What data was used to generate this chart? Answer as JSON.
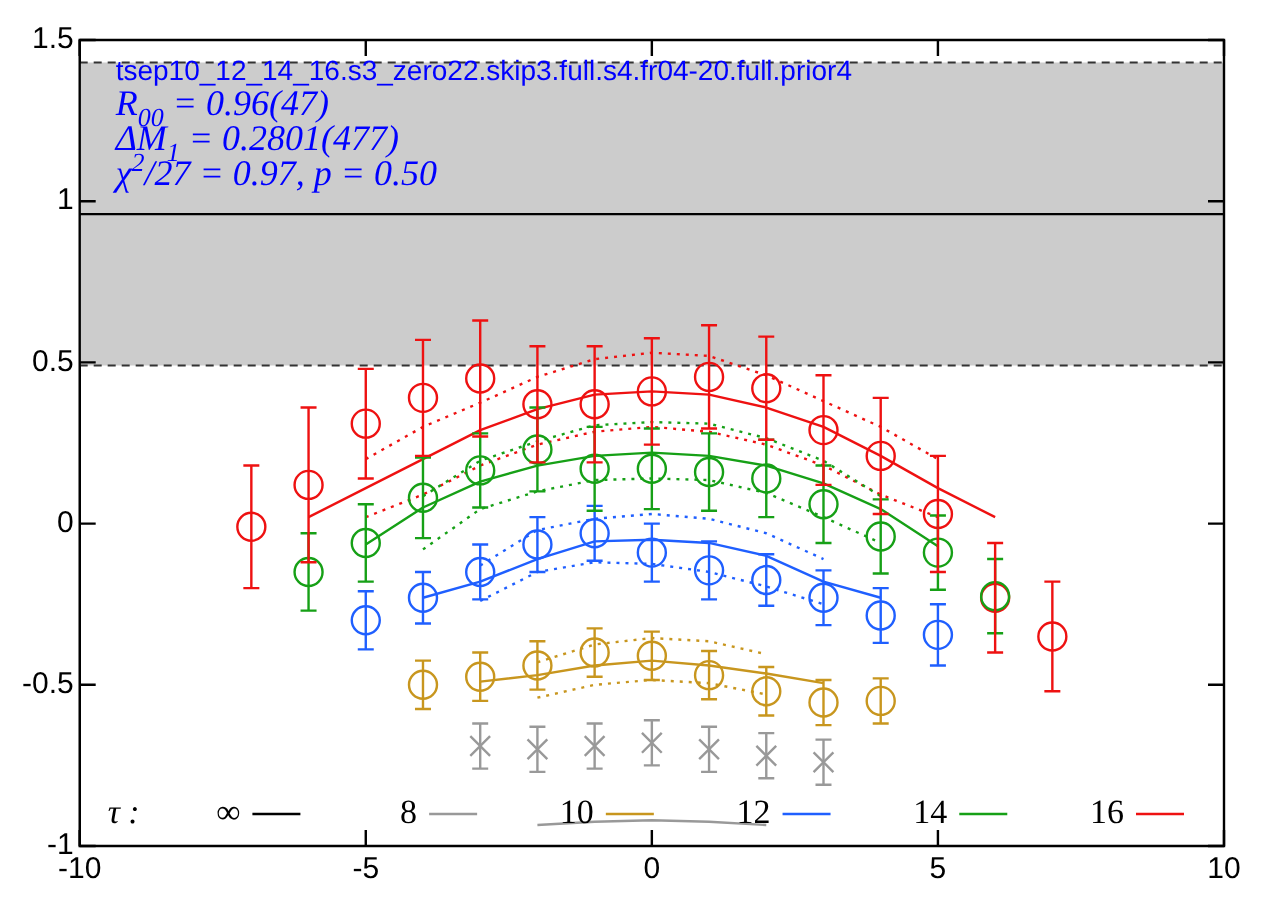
{
  "chart_data": {
    "type": "scatter",
    "annotations": [
      "tsep10_12_14_16.s3_zero22.skip3.full.s4.fr04-20.full.prior4",
      "R$_{00}$ = 0.96(47)",
      "ΔM$_{1}$ = 0.2801(477)",
      "χ$^{2}$/27 = 0.97, p = 0.50"
    ],
    "legend_title": "τ :",
    "legend": "bottom",
    "xlim": [
      -10,
      10
    ],
    "xticks": [
      -10,
      -5,
      0,
      5,
      10
    ],
    "ylim": [
      -1,
      1.5
    ],
    "yticks": [
      -1,
      -0.5,
      0,
      0.5,
      1,
      1.5
    ],
    "bands": [
      {
        "axis": "y",
        "from": 0.49,
        "to": 1.43,
        "color": "#cccccc"
      }
    ],
    "series": [
      {
        "name": "∞",
        "type": "line",
        "color": "#000000",
        "x": [
          -10,
          10
        ],
        "values": [
          0.96,
          0.96
        ]
      },
      {
        "name": "8",
        "type": "line",
        "color": "#999999",
        "x": [
          -2,
          -1,
          0,
          1,
          2
        ],
        "values": [
          -0.935,
          -0.925,
          -0.92,
          -0.925,
          -0.935
        ]
      },
      {
        "type": "scatter",
        "marker": "cross",
        "color": "#999999",
        "x": [
          -3,
          -2,
          -1,
          0,
          1,
          2,
          3
        ],
        "values": [
          -0.69,
          -0.7,
          -0.69,
          -0.68,
          -0.7,
          -0.72,
          -0.74
        ],
        "errors": [
          0.07,
          0.07,
          0.07,
          0.07,
          0.07,
          0.07,
          0.07
        ]
      },
      {
        "name": "10",
        "type": "line",
        "color": "#c8961e",
        "x": [
          -3,
          -2,
          -1,
          0,
          1,
          2,
          3
        ],
        "values": [
          -0.49,
          -0.47,
          -0.44,
          -0.425,
          -0.44,
          -0.465,
          -0.495
        ]
      },
      {
        "type": "line",
        "line_style": "dotted",
        "color": "#c8961e",
        "x": [
          -2,
          -1,
          0,
          1,
          2
        ],
        "values": [
          -0.43,
          -0.375,
          -0.355,
          -0.365,
          -0.405
        ]
      },
      {
        "type": "line",
        "line_style": "dotted",
        "color": "#c8961e",
        "x": [
          -2,
          -1,
          0,
          1,
          2
        ],
        "values": [
          -0.54,
          -0.5,
          -0.485,
          -0.495,
          -0.53
        ]
      },
      {
        "type": "scatter",
        "marker": "circle",
        "color": "#c8961e",
        "x": [
          -4,
          -3,
          -2,
          -1,
          0,
          1,
          2,
          3,
          4
        ],
        "values": [
          -0.5,
          -0.475,
          -0.44,
          -0.4,
          -0.41,
          -0.47,
          -0.52,
          -0.555,
          -0.55
        ],
        "errors": [
          0.075,
          0.075,
          0.075,
          0.075,
          0.075,
          0.075,
          0.075,
          0.07,
          0.07
        ]
      },
      {
        "name": "12",
        "type": "line",
        "color": "#1f5fff",
        "x": [
          -4,
          -3,
          -2,
          -1,
          0,
          1,
          2,
          3,
          4
        ],
        "values": [
          -0.23,
          -0.18,
          -0.11,
          -0.055,
          -0.05,
          -0.06,
          -0.1,
          -0.18,
          -0.23
        ]
      },
      {
        "type": "line",
        "line_style": "dotted",
        "color": "#1f5fff",
        "x": [
          -3,
          -2,
          -1,
          0,
          1,
          2,
          3
        ],
        "values": [
          -0.13,
          -0.02,
          0.015,
          0.03,
          0.015,
          -0.03,
          -0.11
        ]
      },
      {
        "type": "line",
        "line_style": "dotted",
        "color": "#1f5fff",
        "x": [
          -3,
          -2,
          -1,
          0,
          1,
          2,
          3
        ],
        "values": [
          -0.24,
          -0.15,
          -0.12,
          -0.125,
          -0.15,
          -0.195,
          -0.25
        ]
      },
      {
        "type": "scatter",
        "marker": "circle",
        "color": "#1f5fff",
        "x": [
          -5,
          -4,
          -3,
          -2,
          -1,
          0,
          1,
          2,
          3,
          4,
          5
        ],
        "values": [
          -0.3,
          -0.23,
          -0.15,
          -0.065,
          -0.03,
          -0.09,
          -0.145,
          -0.175,
          -0.23,
          -0.285,
          -0.345
        ],
        "errors": [
          0.09,
          0.08,
          0.085,
          0.085,
          0.085,
          0.09,
          0.09,
          0.08,
          0.085,
          0.085,
          0.095
        ]
      },
      {
        "name": "14",
        "type": "line",
        "color": "#16a016",
        "x": [
          -5,
          -4,
          -3,
          -2,
          -1,
          0,
          1,
          2,
          3,
          4,
          5
        ],
        "values": [
          -0.065,
          0.05,
          0.13,
          0.18,
          0.21,
          0.22,
          0.21,
          0.18,
          0.125,
          0.045,
          -0.07
        ]
      },
      {
        "type": "line",
        "line_style": "dotted",
        "color": "#16a016",
        "x": [
          -4,
          -3,
          -2,
          -1,
          0,
          1,
          2,
          3,
          4
        ],
        "values": [
          0.085,
          0.195,
          0.255,
          0.305,
          0.315,
          0.31,
          0.265,
          0.195,
          0.085
        ]
      },
      {
        "type": "line",
        "line_style": "dotted",
        "color": "#16a016",
        "x": [
          -4,
          -3,
          -2,
          -1,
          0,
          1,
          2,
          3,
          4
        ],
        "values": [
          -0.08,
          0.045,
          0.1,
          0.135,
          0.14,
          0.135,
          0.095,
          0.02,
          -0.06
        ]
      },
      {
        "type": "scatter",
        "marker": "circle",
        "color": "#16a016",
        "x": [
          -6,
          -5,
          -4,
          -3,
          -2,
          -1,
          0,
          1,
          2,
          3,
          4,
          5,
          6
        ],
        "values": [
          -0.15,
          -0.06,
          0.08,
          0.165,
          0.23,
          0.17,
          0.17,
          0.16,
          0.14,
          0.06,
          -0.04,
          -0.09,
          -0.225
        ],
        "errors": [
          0.12,
          0.12,
          0.125,
          0.115,
          0.13,
          0.13,
          0.125,
          0.12,
          0.12,
          0.12,
          0.115,
          0.115,
          0.115
        ]
      },
      {
        "name": "16",
        "type": "line",
        "color": "#ee1111",
        "x": [
          -6,
          -5,
          -4,
          -3,
          -2,
          -1,
          0,
          1,
          2,
          3,
          4,
          5,
          6
        ],
        "values": [
          0.02,
          0.11,
          0.2,
          0.29,
          0.355,
          0.4,
          0.41,
          0.4,
          0.36,
          0.3,
          0.21,
          0.11,
          0.02
        ]
      },
      {
        "type": "line",
        "line_style": "dotted",
        "color": "#ee1111",
        "x": [
          -5,
          -4,
          -3,
          -2,
          -1,
          0,
          1,
          2,
          3,
          4,
          5
        ],
        "values": [
          0.2,
          0.3,
          0.375,
          0.455,
          0.51,
          0.53,
          0.52,
          0.46,
          0.38,
          0.3,
          0.2
        ]
      },
      {
        "type": "line",
        "line_style": "dotted",
        "color": "#ee1111",
        "x": [
          -5,
          -4,
          -3,
          -2,
          -1,
          0,
          1,
          2,
          3,
          4,
          5
        ],
        "values": [
          0.02,
          0.09,
          0.18,
          0.245,
          0.285,
          0.3,
          0.285,
          0.245,
          0.18,
          0.09,
          0.02
        ]
      },
      {
        "type": "scatter",
        "marker": "circle",
        "color": "#ee1111",
        "x": [
          -7,
          -6,
          -5,
          -4,
          -3,
          -2,
          -1,
          0,
          1,
          2,
          3,
          4,
          5,
          6,
          7
        ],
        "values": [
          -0.01,
          0.12,
          0.31,
          0.39,
          0.45,
          0.37,
          0.37,
          0.41,
          0.455,
          0.42,
          0.29,
          0.21,
          0.03,
          -0.23,
          -0.35
        ],
        "errors": [
          0.19,
          0.24,
          0.17,
          0.18,
          0.18,
          0.18,
          0.18,
          0.165,
          0.16,
          0.16,
          0.17,
          0.18,
          0.18,
          0.17,
          0.17
        ]
      }
    ]
  }
}
